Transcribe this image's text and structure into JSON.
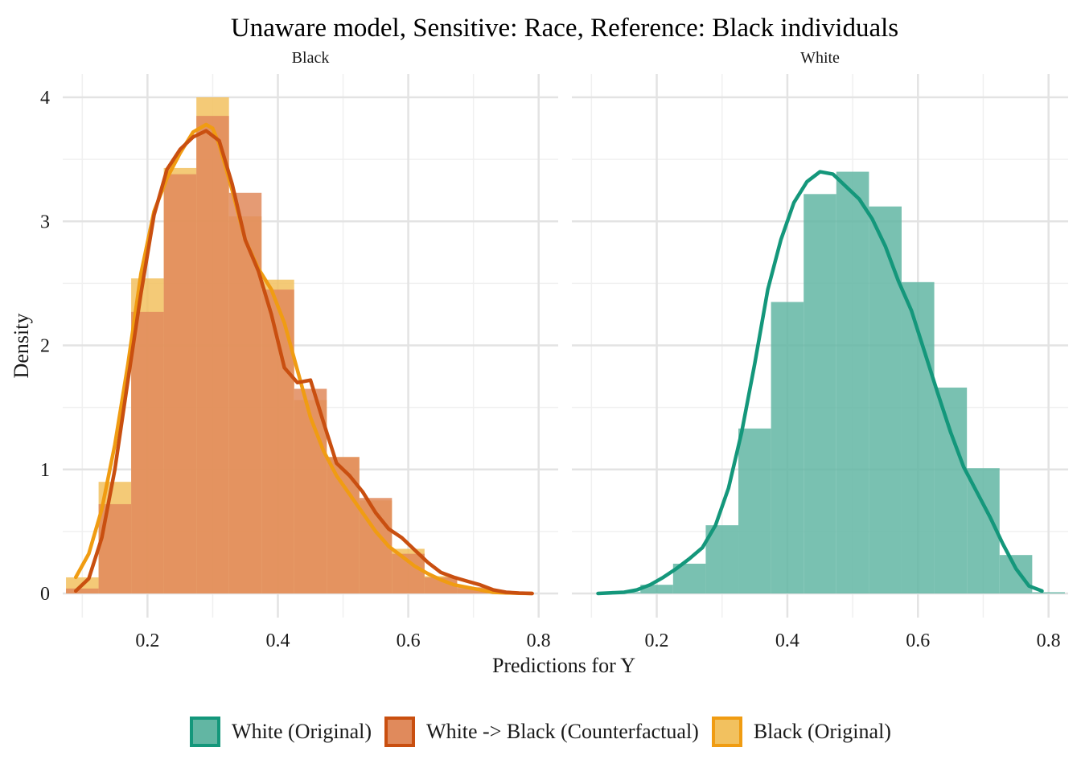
{
  "chart_data": {
    "type": "histogram+density",
    "title": "Unaware model, Sensitive: Race, Reference: Black individuals",
    "xlabel": "Predictions for Y",
    "ylabel": "Density",
    "xlim": [
      0.07,
      0.83
    ],
    "ylim": [
      0,
      4.2
    ],
    "x_ticks": [
      0.2,
      0.4,
      0.6,
      0.8
    ],
    "x_tick_labels": [
      "0.2",
      "0.4",
      "0.6",
      "0.8"
    ],
    "y_ticks": [
      0,
      1,
      2,
      3,
      4
    ],
    "y_tick_labels": [
      "0",
      "1",
      "2",
      "3",
      "4"
    ],
    "bin_width": 0.05,
    "grid": true,
    "legend_position": "bottom",
    "legend": [
      {
        "label": "White (Original)",
        "fill": "#62b6a3",
        "stroke": "#14977b"
      },
      {
        "label": "White -> Black (Counterfactual)",
        "fill": "#e08a5c",
        "stroke": "#c94f10"
      },
      {
        "label": "Black (Original)",
        "fill": "#f2c15f",
        "stroke": "#f09c12"
      }
    ],
    "panels": [
      {
        "strip": "Black",
        "series": [
          {
            "name": "Black (Original)",
            "fill": "#f2c15f",
            "stroke": "#f09c12",
            "bin_centers": [
              0.1,
              0.15,
              0.2,
              0.25,
              0.3,
              0.35,
              0.4,
              0.45,
              0.5,
              0.55,
              0.6,
              0.65,
              0.7,
              0.75
            ],
            "hist": [
              0.13,
              0.9,
              2.54,
              3.43,
              4.0,
              3.04,
              2.53,
              1.56,
              1.1,
              0.75,
              0.36,
              0.14,
              0.04,
              0.01
            ],
            "density_x": [
              0.09,
              0.11,
              0.13,
              0.15,
              0.17,
              0.19,
              0.21,
              0.23,
              0.25,
              0.27,
              0.29,
              0.3,
              0.31,
              0.33,
              0.35,
              0.37,
              0.39,
              0.41,
              0.43,
              0.45,
              0.47,
              0.49,
              0.51,
              0.53,
              0.55,
              0.57,
              0.59,
              0.61,
              0.63,
              0.65,
              0.67,
              0.69,
              0.71,
              0.73,
              0.75,
              0.77,
              0.79
            ],
            "density_y": [
              0.13,
              0.32,
              0.68,
              1.2,
              1.85,
              2.58,
              3.08,
              3.35,
              3.55,
              3.72,
              3.78,
              3.75,
              3.62,
              3.25,
              2.85,
              2.62,
              2.45,
              2.18,
              1.8,
              1.42,
              1.15,
              0.95,
              0.8,
              0.65,
              0.5,
              0.38,
              0.3,
              0.22,
              0.16,
              0.11,
              0.07,
              0.05,
              0.03,
              0.01,
              0.005,
              0.002,
              0.0
            ]
          },
          {
            "name": "White -> Black (Counterfactual)",
            "fill": "#e08a5c",
            "stroke": "#c94f10",
            "bin_centers": [
              0.1,
              0.15,
              0.2,
              0.25,
              0.3,
              0.35,
              0.4,
              0.45,
              0.5,
              0.55,
              0.6,
              0.65,
              0.7,
              0.75
            ],
            "hist": [
              0.04,
              0.72,
              2.27,
              3.38,
              3.85,
              3.23,
              2.45,
              1.65,
              1.1,
              0.77,
              0.32,
              0.13,
              0.05,
              0.01
            ],
            "density_x": [
              0.09,
              0.11,
              0.13,
              0.15,
              0.17,
              0.19,
              0.21,
              0.23,
              0.25,
              0.27,
              0.29,
              0.31,
              0.33,
              0.35,
              0.37,
              0.39,
              0.41,
              0.43,
              0.45,
              0.47,
              0.49,
              0.51,
              0.53,
              0.55,
              0.57,
              0.59,
              0.61,
              0.63,
              0.65,
              0.67,
              0.69,
              0.71,
              0.73,
              0.75,
              0.77,
              0.79
            ],
            "density_y": [
              0.02,
              0.12,
              0.45,
              1.0,
              1.72,
              2.42,
              3.05,
              3.42,
              3.58,
              3.68,
              3.73,
              3.65,
              3.3,
              2.85,
              2.6,
              2.25,
              1.82,
              1.7,
              1.72,
              1.38,
              1.05,
              0.95,
              0.82,
              0.65,
              0.52,
              0.45,
              0.35,
              0.25,
              0.17,
              0.13,
              0.1,
              0.07,
              0.03,
              0.01,
              0.003,
              0.0
            ]
          }
        ]
      },
      {
        "strip": "White",
        "series": [
          {
            "name": "White (Original)",
            "fill": "#62b6a3",
            "stroke": "#14977b",
            "bin_centers": [
              0.15,
              0.2,
              0.25,
              0.3,
              0.35,
              0.4,
              0.45,
              0.5,
              0.55,
              0.6,
              0.65,
              0.7,
              0.75,
              0.8
            ],
            "hist": [
              0.01,
              0.07,
              0.24,
              0.55,
              1.33,
              2.35,
              3.22,
              3.4,
              3.12,
              2.51,
              1.66,
              1.01,
              0.31,
              0.01
            ],
            "density_x": [
              0.11,
              0.13,
              0.15,
              0.17,
              0.19,
              0.21,
              0.23,
              0.25,
              0.27,
              0.29,
              0.31,
              0.33,
              0.35,
              0.37,
              0.39,
              0.41,
              0.43,
              0.45,
              0.47,
              0.49,
              0.51,
              0.53,
              0.55,
              0.57,
              0.59,
              0.61,
              0.63,
              0.65,
              0.67,
              0.69,
              0.71,
              0.73,
              0.75,
              0.77,
              0.79
            ],
            "density_y": [
              0.0,
              0.005,
              0.01,
              0.03,
              0.07,
              0.13,
              0.2,
              0.28,
              0.37,
              0.55,
              0.85,
              1.3,
              1.85,
              2.45,
              2.85,
              3.15,
              3.32,
              3.4,
              3.38,
              3.28,
              3.18,
              3.02,
              2.8,
              2.52,
              2.28,
              1.95,
              1.62,
              1.3,
              1.02,
              0.82,
              0.62,
              0.4,
              0.2,
              0.06,
              0.02
            ]
          }
        ]
      }
    ]
  }
}
